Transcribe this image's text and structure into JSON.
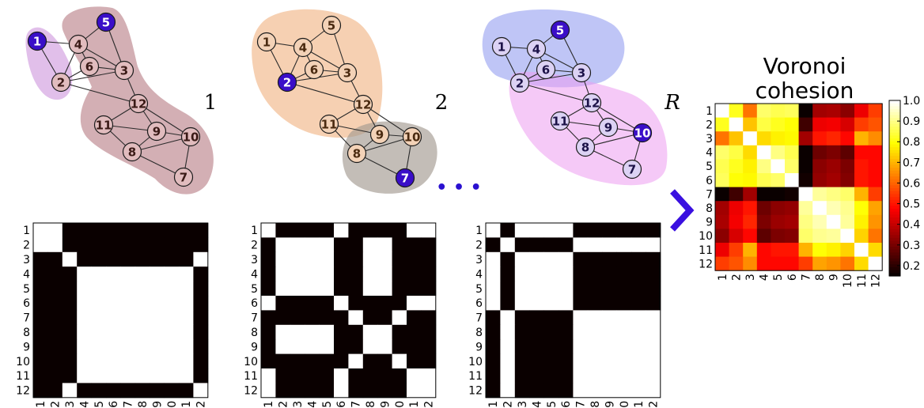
{
  "panels": [
    {
      "label": "1",
      "node_fill": "#e1bcbe",
      "node_text": "#3a1a16",
      "seeds": [
        1,
        5
      ],
      "blobs": [
        {
          "color": "#c98bd8",
          "opacity": 0.55
        },
        {
          "color": "#b57a82",
          "opacity": 0.6
        }
      ],
      "matrix_blocks": [
        [
          1,
          2
        ],
        [
          3,
          12
        ]
      ]
    },
    {
      "label": "2",
      "node_fill": "#f3d2b7",
      "node_text": "#4a2a10",
      "seeds": [
        2,
        7
      ],
      "blobs": [
        {
          "color": "#f0b07e",
          "opacity": 0.6
        },
        {
          "color": "#a39a90",
          "opacity": 0.65
        }
      ],
      "matrix_blocks": [
        [
          1,
          6,
          11,
          12
        ],
        [
          7,
          10
        ]
      ]
    },
    {
      "label": "R",
      "node_fill": "#dcd2f4",
      "node_text": "#1c1248",
      "seeds": [
        5,
        10
      ],
      "blobs": [
        {
          "color": "#8a96ee",
          "opacity": 0.55
        },
        {
          "color": "#ec9cf0",
          "opacity": 0.55
        }
      ],
      "matrix_blocks": [
        [
          1,
          3,
          4,
          5,
          6
        ],
        [
          2,
          7,
          8,
          9,
          10,
          11,
          12
        ]
      ]
    }
  ],
  "seed_fill": "#3a0ec8",
  "nodes": [
    "1",
    "2",
    "3",
    "4",
    "5",
    "6",
    "7",
    "8",
    "9",
    "10",
    "11",
    "12"
  ],
  "edges": [
    [
      1,
      2
    ],
    [
      1,
      4
    ],
    [
      2,
      4
    ],
    [
      2,
      6
    ],
    [
      2,
      3
    ],
    [
      4,
      5
    ],
    [
      4,
      6
    ],
    [
      4,
      3
    ],
    [
      5,
      3
    ],
    [
      6,
      3
    ],
    [
      3,
      12
    ],
    [
      2,
      12
    ],
    [
      12,
      11
    ],
    [
      12,
      9
    ],
    [
      12,
      10
    ],
    [
      11,
      9
    ],
    [
      11,
      8
    ],
    [
      9,
      8
    ],
    [
      9,
      10
    ],
    [
      8,
      10
    ],
    [
      8,
      7
    ],
    [
      10,
      7
    ]
  ],
  "ellipsis": "• • •",
  "ellipsis_color": "#2a10d0",
  "arrow_color": "#3a10e0",
  "tick_labels": [
    "1",
    "2",
    "3",
    "4",
    "5",
    "6",
    "7",
    "8",
    "9",
    "10",
    "11",
    "12"
  ],
  "voronoi": {
    "title_line1": "Voronoi",
    "title_line2": "cohesion",
    "colorbar_ticks": [
      "1.0",
      "0.9",
      "0.8",
      "0.7",
      "0.6",
      "0.5",
      "0.4",
      "0.3",
      "0.2"
    ],
    "matrix": [
      [
        1.0,
        0.82,
        0.62,
        0.88,
        0.86,
        0.87,
        0.12,
        0.35,
        0.36,
        0.32,
        0.45,
        0.55
      ],
      [
        0.82,
        1.0,
        0.72,
        0.85,
        0.82,
        0.8,
        0.22,
        0.45,
        0.46,
        0.42,
        0.55,
        0.58
      ],
      [
        0.62,
        0.72,
        1.0,
        0.75,
        0.78,
        0.79,
        0.35,
        0.5,
        0.52,
        0.48,
        0.7,
        0.65
      ],
      [
        0.88,
        0.85,
        0.75,
        1.0,
        0.9,
        0.86,
        0.1,
        0.28,
        0.3,
        0.26,
        0.48,
        0.48
      ],
      [
        0.86,
        0.82,
        0.78,
        0.9,
        1.0,
        0.88,
        0.15,
        0.32,
        0.34,
        0.3,
        0.5,
        0.48
      ],
      [
        0.87,
        0.8,
        0.79,
        0.86,
        0.88,
        1.0,
        0.16,
        0.33,
        0.35,
        0.31,
        0.5,
        0.48
      ],
      [
        0.12,
        0.22,
        0.35,
        0.1,
        0.15,
        0.16,
        1.0,
        0.92,
        0.9,
        0.88,
        0.7,
        0.55
      ],
      [
        0.35,
        0.45,
        0.5,
        0.28,
        0.32,
        0.33,
        0.92,
        1.0,
        0.94,
        0.91,
        0.8,
        0.68
      ],
      [
        0.36,
        0.46,
        0.52,
        0.3,
        0.34,
        0.35,
        0.9,
        0.94,
        1.0,
        0.92,
        0.78,
        0.66
      ],
      [
        0.32,
        0.42,
        0.48,
        0.26,
        0.3,
        0.31,
        0.88,
        0.91,
        0.92,
        1.0,
        0.74,
        0.62
      ],
      [
        0.45,
        0.55,
        0.7,
        0.48,
        0.5,
        0.5,
        0.7,
        0.8,
        0.78,
        0.74,
        1.0,
        0.75
      ],
      [
        0.55,
        0.58,
        0.65,
        0.48,
        0.48,
        0.48,
        0.55,
        0.68,
        0.66,
        0.62,
        0.75,
        1.0
      ]
    ]
  }
}
